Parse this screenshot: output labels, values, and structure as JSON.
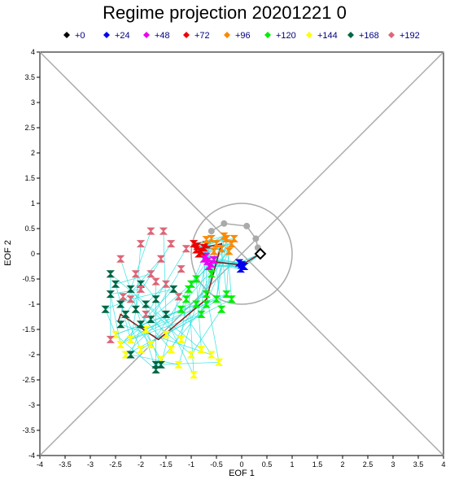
{
  "chart_data": {
    "type": "scatter",
    "title": "Regime projection 20201221 0",
    "xlabel": "EOF 1",
    "ylabel": "EOF 2",
    "xlim": [
      -4,
      4
    ],
    "ylim": [
      -4,
      4
    ],
    "x_ticks": [
      "-4",
      "-3.5",
      "-3",
      "-2.5",
      "-2",
      "-1.5",
      "-1",
      "-0.5",
      "0",
      "0.5",
      "1",
      "1.5",
      "2",
      "2.5",
      "3",
      "3.5",
      "4"
    ],
    "y_ticks": [
      "-4",
      "-3.5",
      "-3",
      "-2.5",
      "-2",
      "-1.5",
      "-1",
      "-0.5",
      "0",
      "0.5",
      "1",
      "1.5",
      "2",
      "2.5",
      "3",
      "3.5",
      "4"
    ],
    "legend_position": "top",
    "reference_circle": {
      "center": [
        0,
        0
      ],
      "radius": 1,
      "color": "#aaaaaa"
    },
    "diagonals_color": "#aaaaaa",
    "ensemble_line_color": "#33e0e0",
    "mean_track_color": "#8b1a1a",
    "analysis_track_color": "#aaaaaa",
    "series": [
      {
        "name": "+0",
        "color": "#000000",
        "points": [
          [
            0.37,
            0.0
          ]
        ]
      },
      {
        "name": "+24",
        "color": "#0000ee",
        "points": [
          [
            0.0,
            -0.22
          ],
          [
            -0.02,
            -0.3
          ],
          [
            0.05,
            -0.25
          ],
          [
            -0.05,
            -0.18
          ]
        ]
      },
      {
        "name": "+48",
        "color": "#ee00ee",
        "points": [
          [
            -0.68,
            -0.15
          ],
          [
            -0.6,
            -0.2
          ],
          [
            -0.75,
            -0.1
          ],
          [
            -0.55,
            -0.12
          ],
          [
            -0.65,
            -0.25
          ],
          [
            -0.7,
            -0.05
          ]
        ]
      },
      {
        "name": "+72",
        "color": "#ee0000",
        "points": [
          [
            -0.88,
            0.15
          ],
          [
            -0.8,
            0.05
          ],
          [
            -0.95,
            0.2
          ],
          [
            -0.75,
            0.12
          ],
          [
            -0.85,
            0.0
          ],
          [
            -0.7,
            0.18
          ],
          [
            -0.9,
            0.08
          ]
        ]
      },
      {
        "name": "+96",
        "color": "#ff8800",
        "points": [
          [
            -0.6,
            0.3
          ],
          [
            -0.5,
            0.2
          ],
          [
            -0.3,
            0.3
          ],
          [
            -0.4,
            0.1
          ],
          [
            -0.2,
            0.2
          ],
          [
            -0.7,
            0.28
          ],
          [
            -0.35,
            0.35
          ],
          [
            -0.25,
            0.05
          ],
          [
            -0.55,
            0.05
          ],
          [
            -0.15,
            0.3
          ]
        ]
      },
      {
        "name": "+120",
        "color": "#00ee00",
        "points": [
          [
            -0.9,
            -1.0
          ],
          [
            -0.7,
            -0.8
          ],
          [
            -0.5,
            -0.9
          ],
          [
            -0.3,
            -0.8
          ],
          [
            -1.0,
            -0.6
          ],
          [
            -0.8,
            -1.2
          ],
          [
            -0.6,
            -0.4
          ],
          [
            -1.1,
            -0.9
          ],
          [
            -0.4,
            -1.1
          ],
          [
            -0.9,
            -0.5
          ],
          [
            -1.2,
            -1.1
          ],
          [
            -0.7,
            -1.0
          ],
          [
            -0.2,
            -0.9
          ],
          [
            -1.05,
            -0.7
          ]
        ]
      },
      {
        "name": "+144",
        "color": "#ffff00",
        "points": [
          [
            -2.5,
            -1.6
          ],
          [
            -2.4,
            -1.8
          ],
          [
            -2.2,
            -1.7
          ],
          [
            -2.0,
            -1.9
          ],
          [
            -1.8,
            -1.8
          ],
          [
            -1.5,
            -1.6
          ],
          [
            -1.4,
            -1.9
          ],
          [
            -1.2,
            -1.7
          ],
          [
            -1.0,
            -2.0
          ],
          [
            -0.8,
            -1.9
          ],
          [
            -0.6,
            -2.0
          ],
          [
            -1.6,
            -2.1
          ],
          [
            -2.3,
            -2.0
          ],
          [
            -0.95,
            -2.4
          ],
          [
            -1.25,
            -2.2
          ],
          [
            -0.45,
            -2.15
          ],
          [
            -1.9,
            -1.5
          ]
        ]
      },
      {
        "name": "+168",
        "color": "#006644",
        "points": [
          [
            -2.7,
            -1.1
          ],
          [
            -2.6,
            -0.8
          ],
          [
            -2.5,
            -0.6
          ],
          [
            -2.4,
            -1.0
          ],
          [
            -2.3,
            -1.2
          ],
          [
            -2.2,
            -0.7
          ],
          [
            -2.1,
            -1.1
          ],
          [
            -1.9,
            -1.0
          ],
          [
            -1.8,
            -1.3
          ],
          [
            -2.6,
            -0.4
          ],
          [
            -2.4,
            -1.4
          ],
          [
            -2.0,
            -1.4
          ],
          [
            -1.5,
            -1.2
          ],
          [
            -1.7,
            -0.9
          ],
          [
            -2.2,
            -2.0
          ],
          [
            -1.7,
            -2.2
          ],
          [
            -1.6,
            -2.2
          ],
          [
            -1.7,
            -2.3
          ],
          [
            -1.35,
            -0.7
          ],
          [
            -2.0,
            -0.6
          ]
        ]
      },
      {
        "name": "+192",
        "color": "#dd6677",
        "points": [
          [
            -2.2,
            -0.9
          ],
          [
            -2.0,
            -0.7
          ],
          [
            -1.8,
            -0.4
          ],
          [
            -1.6,
            -0.1
          ],
          [
            -1.4,
            0.2
          ],
          [
            -1.8,
            0.45
          ],
          [
            -2.0,
            0.2
          ],
          [
            -1.5,
            -0.6
          ],
          [
            -1.2,
            -0.3
          ],
          [
            -2.6,
            -1.7
          ],
          [
            -2.35,
            -0.85
          ],
          [
            -1.1,
            0.1
          ],
          [
            -1.55,
            0.45
          ],
          [
            -2.1,
            -0.4
          ],
          [
            -1.9,
            -1.2
          ],
          [
            -1.7,
            -0.55
          ],
          [
            -1.25,
            -0.85
          ],
          [
            -2.4,
            -0.1
          ]
        ]
      }
    ],
    "analysis_track": [
      [
        0.37,
        0.0
      ],
      [
        0.32,
        0.12
      ],
      [
        0.28,
        0.3
      ],
      [
        0.1,
        0.55
      ],
      [
        -0.35,
        0.6
      ],
      [
        -0.6,
        0.45
      ]
    ],
    "mean_track": [
      [
        0.37,
        0.0
      ],
      [
        0.0,
        -0.22
      ],
      [
        -0.65,
        -0.15
      ],
      [
        -0.85,
        0.1
      ],
      [
        -0.4,
        0.2
      ],
      [
        -0.7,
        -0.9
      ],
      [
        -1.65,
        -1.7
      ],
      [
        -2.4,
        -1.2
      ],
      [
        -2.45,
        -1.35
      ]
    ]
  }
}
